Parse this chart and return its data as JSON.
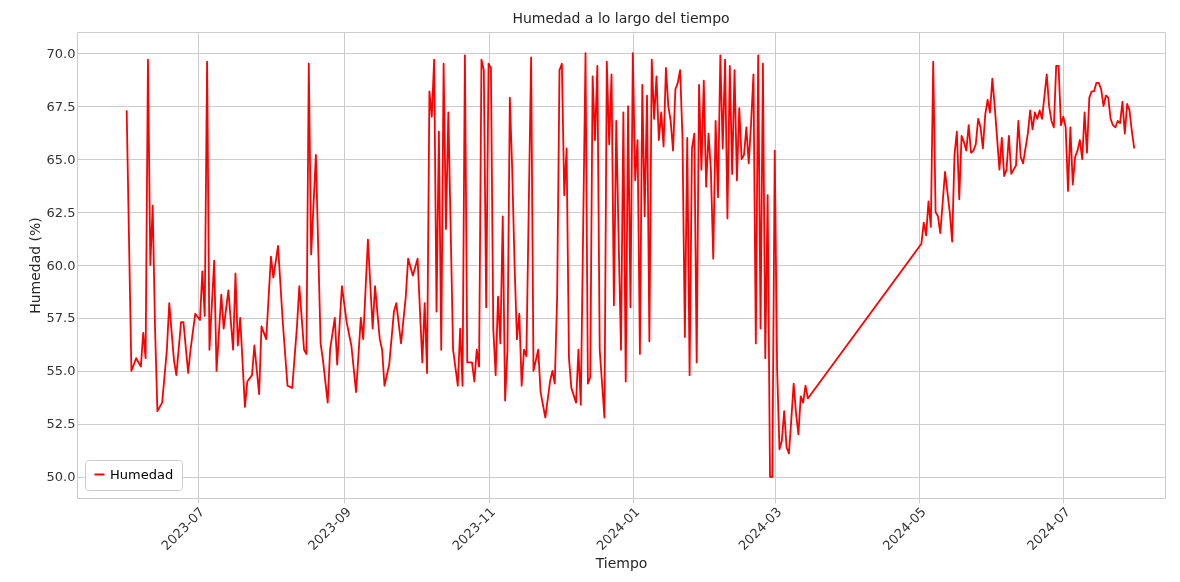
{
  "chart_data": {
    "type": "line",
    "title": "Humedad a lo largo del tiempo",
    "xlabel": "Tiempo",
    "ylabel": "Humedad (%)",
    "xlim": [
      "2023-05-11",
      "2024-08-13"
    ],
    "xticks": [
      {
        "value": "2023-07-01",
        "label": "2023-07"
      },
      {
        "value": "2023-09-01",
        "label": "2023-09"
      },
      {
        "value": "2023-11-01",
        "label": "2023-11"
      },
      {
        "value": "2024-01-01",
        "label": "2024-01"
      },
      {
        "value": "2024-03-01",
        "label": "2024-03"
      },
      {
        "value": "2024-05-01",
        "label": "2024-05"
      },
      {
        "value": "2024-07-01",
        "label": "2024-07"
      }
    ],
    "ylim": [
      49.0,
      71.0
    ],
    "yticks": [
      {
        "value": 50,
        "label": "50.0"
      },
      {
        "value": 52.5,
        "label": "52.5"
      },
      {
        "value": 55,
        "label": "55.0"
      },
      {
        "value": 57.5,
        "label": "57.5"
      },
      {
        "value": 60,
        "label": "60.0"
      },
      {
        "value": 62.5,
        "label": "62.5"
      },
      {
        "value": 65,
        "label": "65.0"
      },
      {
        "value": 67.5,
        "label": "67.5"
      },
      {
        "value": 70,
        "label": "70.0"
      }
    ],
    "grid": true,
    "legend": "bottom left",
    "line_style": "solid",
    "series": [
      {
        "name": "Humedad",
        "color": "#ff0000",
        "x": [
          "2023-06-01",
          "2023-06-03",
          "2023-06-05",
          "2023-06-07",
          "2023-06-08",
          "2023-06-09",
          "2023-06-10",
          "2023-06-11",
          "2023-06-12",
          "2023-06-13",
          "2023-06-14",
          "2023-06-16",
          "2023-06-18",
          "2023-06-19",
          "2023-06-21",
          "2023-06-22",
          "2023-06-24",
          "2023-06-25",
          "2023-06-27",
          "2023-06-28",
          "2023-06-30",
          "2023-07-02",
          "2023-07-03",
          "2023-07-04",
          "2023-07-05",
          "2023-07-06",
          "2023-07-08",
          "2023-07-09",
          "2023-07-11",
          "2023-07-12",
          "2023-07-14",
          "2023-07-16",
          "2023-07-17",
          "2023-07-18",
          "2023-07-19",
          "2023-07-21",
          "2023-07-22",
          "2023-07-24",
          "2023-07-25",
          "2023-07-27",
          "2023-07-28",
          "2023-07-30",
          "2023-08-01",
          "2023-08-02",
          "2023-08-04",
          "2023-08-06",
          "2023-08-08",
          "2023-08-10",
          "2023-08-12",
          "2023-08-13",
          "2023-08-15",
          "2023-08-16",
          "2023-08-17",
          "2023-08-18",
          "2023-08-20",
          "2023-08-22",
          "2023-08-23",
          "2023-08-25",
          "2023-08-26",
          "2023-08-28",
          "2023-08-29",
          "2023-08-31",
          "2023-09-02",
          "2023-09-04",
          "2023-09-06",
          "2023-09-08",
          "2023-09-09",
          "2023-09-11",
          "2023-09-13",
          "2023-09-14",
          "2023-09-16",
          "2023-09-17",
          "2023-09-18",
          "2023-09-20",
          "2023-09-22",
          "2023-09-23",
          "2023-09-25",
          "2023-09-27",
          "2023-09-28",
          "2023-09-30",
          "2023-10-02",
          "2023-10-04",
          "2023-10-05",
          "2023-10-06",
          "2023-10-07",
          "2023-10-08",
          "2023-10-09",
          "2023-10-10",
          "2023-10-11",
          "2023-10-12",
          "2023-10-13",
          "2023-10-14",
          "2023-10-15",
          "2023-10-17",
          "2023-10-19",
          "2023-10-20",
          "2023-10-21",
          "2023-10-22",
          "2023-10-23",
          "2023-10-25",
          "2023-10-26",
          "2023-10-27",
          "2023-10-28",
          "2023-10-29",
          "2023-10-30",
          "2023-10-31",
          "2023-11-01",
          "2023-11-02",
          "2023-11-03",
          "2023-11-04",
          "2023-11-05",
          "2023-11-06",
          "2023-11-07",
          "2023-11-08",
          "2023-11-09",
          "2023-11-10",
          "2023-11-11",
          "2023-11-12",
          "2023-11-13",
          "2023-11-14",
          "2023-11-15",
          "2023-11-16",
          "2023-11-17",
          "2023-11-19",
          "2023-11-20",
          "2023-11-22",
          "2023-11-23",
          "2023-11-25",
          "2023-11-27",
          "2023-11-28",
          "2023-11-29",
          "2023-11-30",
          "2023-12-01",
          "2023-12-02",
          "2023-12-03",
          "2023-12-04",
          "2023-12-05",
          "2023-12-06",
          "2023-12-08",
          "2023-12-09",
          "2023-12-10",
          "2023-12-12",
          "2023-12-13",
          "2023-12-14",
          "2023-12-15",
          "2023-12-16",
          "2023-12-17",
          "2023-12-18",
          "2023-12-20",
          "2023-12-21",
          "2023-12-22",
          "2023-12-23",
          "2023-12-24",
          "2023-12-25",
          "2023-12-26",
          "2023-12-27",
          "2023-12-28",
          "2023-12-29",
          "2023-12-30",
          "2023-12-31",
          "2024-01-01",
          "2024-01-02",
          "2024-01-03",
          "2024-01-04",
          "2024-01-05",
          "2024-01-06",
          "2024-01-07",
          "2024-01-08",
          "2024-01-09",
          "2024-01-10",
          "2024-01-11",
          "2024-01-12",
          "2024-01-13",
          "2024-01-14",
          "2024-01-15",
          "2024-01-16",
          "2024-01-17",
          "2024-01-18",
          "2024-01-19",
          "2024-01-20",
          "2024-01-21",
          "2024-01-22",
          "2024-01-23",
          "2024-01-24",
          "2024-01-25",
          "2024-01-26",
          "2024-01-27",
          "2024-01-28",
          "2024-01-29",
          "2024-01-30",
          "2024-01-31",
          "2024-02-01",
          "2024-02-02",
          "2024-02-03",
          "2024-02-04",
          "2024-02-05",
          "2024-02-06",
          "2024-02-07",
          "2024-02-08",
          "2024-02-09",
          "2024-02-10",
          "2024-02-11",
          "2024-02-12",
          "2024-02-13",
          "2024-02-14",
          "2024-02-15",
          "2024-02-16",
          "2024-02-17",
          "2024-02-18",
          "2024-02-19",
          "2024-02-20",
          "2024-02-21",
          "2024-02-22",
          "2024-02-23",
          "2024-02-24",
          "2024-02-25",
          "2024-02-26",
          "2024-02-27",
          "2024-02-28",
          "2024-02-29",
          "2024-03-01",
          "2024-03-02",
          "2024-03-03",
          "2024-03-04",
          "2024-03-05",
          "2024-03-06",
          "2024-03-07",
          "2024-03-08",
          "2024-03-09",
          "2024-03-10",
          "2024-03-11",
          "2024-03-12",
          "2024-03-13",
          "2024-03-14",
          "2024-03-15",
          "2024-05-02",
          "2024-05-03",
          "2024-05-04",
          "2024-05-05",
          "2024-05-06",
          "2024-05-07",
          "2024-05-08",
          "2024-05-09",
          "2024-05-10",
          "2024-05-12",
          "2024-05-14",
          "2024-05-15",
          "2024-05-16",
          "2024-05-17",
          "2024-05-18",
          "2024-05-19",
          "2024-05-20",
          "2024-05-21",
          "2024-05-22",
          "2024-05-23",
          "2024-05-24",
          "2024-05-25",
          "2024-05-26",
          "2024-05-27",
          "2024-05-28",
          "2024-05-29",
          "2024-05-30",
          "2024-05-31",
          "2024-06-01",
          "2024-06-02",
          "2024-06-04",
          "2024-06-05",
          "2024-06-06",
          "2024-06-07",
          "2024-06-08",
          "2024-06-09",
          "2024-06-10",
          "2024-06-11",
          "2024-06-12",
          "2024-06-13",
          "2024-06-14",
          "2024-06-16",
          "2024-06-17",
          "2024-06-18",
          "2024-06-19",
          "2024-06-20",
          "2024-06-21",
          "2024-06-22",
          "2024-06-24",
          "2024-06-25",
          "2024-06-26",
          "2024-06-27",
          "2024-06-28",
          "2024-06-29",
          "2024-06-30",
          "2024-07-01",
          "2024-07-02",
          "2024-07-03",
          "2024-07-04",
          "2024-07-05",
          "2024-07-06",
          "2024-07-07",
          "2024-07-08",
          "2024-07-09",
          "2024-07-10",
          "2024-07-11",
          "2024-07-12",
          "2024-07-13",
          "2024-07-14",
          "2024-07-15",
          "2024-07-16",
          "2024-07-17",
          "2024-07-18",
          "2024-07-19",
          "2024-07-20",
          "2024-07-21",
          "2024-07-22",
          "2024-07-23",
          "2024-07-24",
          "2024-07-25",
          "2024-07-26",
          "2024-07-27",
          "2024-07-28",
          "2024-07-29",
          "2024-07-30",
          "2024-07-31"
        ],
        "values": [
          67.3,
          55.0,
          55.6,
          55.2,
          56.8,
          55.6,
          69.7,
          60.0,
          62.8,
          57.0,
          53.1,
          53.5,
          56.0,
          58.2,
          55.5,
          54.8,
          57.3,
          57.3,
          54.9,
          56.0,
          57.7,
          57.4,
          59.7,
          57.6,
          69.6,
          56.0,
          60.2,
          55.0,
          58.6,
          57.0,
          58.8,
          56.0,
          59.6,
          56.2,
          57.5,
          53.3,
          54.5,
          54.8,
          56.2,
          53.9,
          57.1,
          56.5,
          60.4,
          59.4,
          60.9,
          57.3,
          54.3,
          54.2,
          57.1,
          59.0,
          56.0,
          55.8,
          69.5,
          60.5,
          65.2,
          56.3,
          55.5,
          53.5,
          56.0,
          57.5,
          55.3,
          59.0,
          57.3,
          56.2,
          54.0,
          57.5,
          56.5,
          61.2,
          57.0,
          59.0,
          56.5,
          56.0,
          54.3,
          55.3,
          57.8,
          58.2,
          56.3,
          58.5,
          60.3,
          59.5,
          60.3,
          55.4,
          58.2,
          54.9,
          68.2,
          67.0,
          69.7,
          57.8,
          66.3,
          56.0,
          69.5,
          61.7,
          67.2,
          56.0,
          54.3,
          57.0,
          54.3,
          69.9,
          55.4,
          55.4,
          54.5,
          56.0,
          55.2,
          69.7,
          69.2,
          58.0,
          69.5,
          69.3,
          57.0,
          54.8,
          58.5,
          56.3,
          62.3,
          53.6,
          56.0,
          67.9,
          64.5,
          60.0,
          56.5,
          57.7,
          54.3,
          56.0,
          55.7,
          69.8,
          55.0,
          56.0,
          54.0,
          52.8,
          54.5,
          55.0,
          54.4,
          58.5,
          69.2,
          69.5,
          63.3,
          65.5,
          55.6,
          54.2,
          53.5,
          56.0,
          53.4,
          70.0,
          54.4,
          54.7,
          68.9,
          65.9,
          69.4,
          56.0,
          52.8,
          69.6,
          65.7,
          69.0,
          58.1,
          66.8,
          61.2,
          56.0,
          67.2,
          54.5,
          67.5,
          58.0,
          70.0,
          64.0,
          65.9,
          55.8,
          68.5,
          62.3,
          68.0,
          56.4,
          69.7,
          66.9,
          68.9,
          65.9,
          67.2,
          65.6,
          69.3,
          67.5,
          66.8,
          65.4,
          68.3,
          68.6,
          69.2,
          66.0,
          56.6,
          66.0,
          54.8,
          65.5,
          66.2,
          55.4,
          68.5,
          64.5,
          68.7,
          63.7,
          66.2,
          64.5,
          60.3,
          66.8,
          63.2,
          69.9,
          65.5,
          69.7,
          62.2,
          69.4,
          64.3,
          69.2,
          64.0,
          67.4,
          65.0,
          65.2,
          66.5,
          64.8,
          66.7,
          69.0,
          56.3,
          69.9,
          57.0,
          69.5,
          55.6,
          63.3,
          50.0,
          50.0,
          65.4,
          55.1,
          51.3,
          51.7,
          53.1,
          51.4,
          51.1,
          52.7,
          54.4,
          53.0,
          52.0,
          53.8,
          53.5,
          54.3,
          53.7,
          61.0,
          62.0,
          61.4,
          63.0,
          61.8,
          69.6,
          62.5,
          62.3,
          61.5,
          64.4,
          62.5,
          61.1,
          65.2,
          66.3,
          63.1,
          66.1,
          65.8,
          65.4,
          66.6,
          65.3,
          65.4,
          65.7,
          66.9,
          66.5,
          65.5,
          67.1,
          67.8,
          67.2,
          68.8,
          67.5,
          64.5,
          66.0,
          64.2,
          64.5,
          66.1,
          64.3,
          64.5,
          64.7,
          66.8,
          65.1,
          64.8,
          66.2,
          67.3,
          66.4,
          67.2,
          66.9,
          67.3,
          66.9,
          69.0,
          67.5,
          66.8,
          66.5,
          69.4,
          69.4,
          66.6,
          67.0,
          66.5,
          63.5,
          66.5,
          63.8,
          65.1,
          65.4,
          65.9,
          65.0,
          67.2,
          65.3,
          67.9,
          68.2,
          68.2,
          68.6,
          68.6,
          68.3,
          67.5,
          68.0,
          67.9,
          66.9,
          66.6,
          66.5,
          66.8,
          66.7,
          67.7,
          66.2,
          67.6,
          67.3,
          66.3,
          65.5
        ]
      }
    ]
  }
}
